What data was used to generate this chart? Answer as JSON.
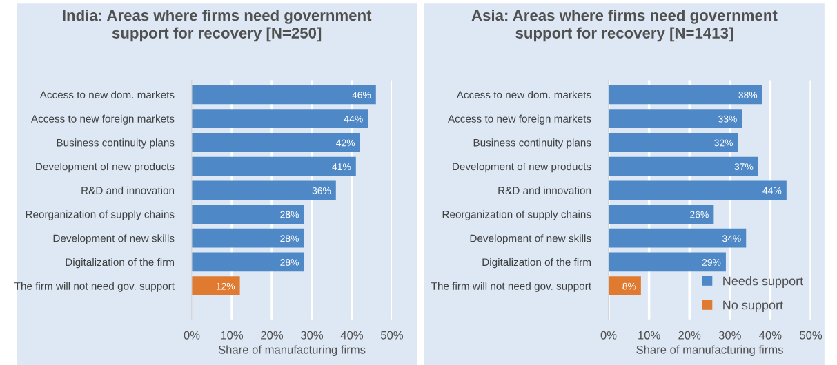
{
  "chart_data": [
    {
      "type": "bar",
      "orientation": "horizontal",
      "title": "India: Areas where firms need government\nsupport for recovery [N=250]",
      "xlabel": "Share of manufacturing firms",
      "categories": [
        "Access to new dom. markets",
        "Access to new foreign markets",
        "Business continuity plans",
        "Development of new products",
        "R&D and innovation",
        "Reorganization of supply chains",
        "Development of new skills",
        "Digitalization of the firm",
        "The firm will not need gov. support"
      ],
      "series": [
        {
          "color": "#4f88c6",
          "values": [
            46,
            44,
            42,
            41,
            36,
            28,
            28,
            28,
            null
          ],
          "value_labels": [
            "46%",
            "44%",
            "42%",
            "41%",
            "36%",
            "28%",
            "28%",
            "28%",
            null
          ]
        },
        {
          "color": "#e07a30",
          "values": [
            null,
            null,
            null,
            null,
            null,
            null,
            null,
            null,
            12
          ],
          "value_labels": [
            null,
            null,
            null,
            null,
            null,
            null,
            null,
            null,
            "12%"
          ]
        }
      ],
      "xlim": [
        0,
        50
      ],
      "xticks": [
        {
          "value": 0,
          "label": "0%"
        },
        {
          "value": 10,
          "label": "10%"
        },
        {
          "value": 20,
          "label": "20%"
        },
        {
          "value": 30,
          "label": "30%"
        },
        {
          "value": 40,
          "label": "40%"
        },
        {
          "value": 50,
          "label": "50%"
        }
      ],
      "grid": "x"
    },
    {
      "type": "bar",
      "orientation": "horizontal",
      "title": "Asia: Areas where firms need government\nsupport for recovery [N=1413]",
      "xlabel": "Share of manufacturing firms",
      "categories": [
        "Access to new dom. markets",
        "Access to new foreign markets",
        "Business continuity plans",
        "Development of new products",
        "R&D and innovation",
        "Reorganization of supply chains",
        "Development of new skills",
        "Digitalization of the firm",
        "The firm will not need gov. support"
      ],
      "series": [
        {
          "name": "Needs support",
          "color": "#4f88c6",
          "values": [
            38,
            33,
            32,
            37,
            44,
            26,
            34,
            29,
            null
          ],
          "value_labels": [
            "38%",
            "33%",
            "32%",
            "37%",
            "44%",
            "26%",
            "34%",
            "29%",
            null
          ]
        },
        {
          "name": "No support",
          "color": "#e07a30",
          "values": [
            null,
            null,
            null,
            null,
            null,
            null,
            null,
            null,
            8
          ],
          "value_labels": [
            null,
            null,
            null,
            null,
            null,
            null,
            null,
            null,
            "8%"
          ]
        }
      ],
      "xlim": [
        0,
        50
      ],
      "xticks": [
        {
          "value": 0,
          "label": "0%"
        },
        {
          "value": 10,
          "label": "10%"
        },
        {
          "value": 20,
          "label": "20%"
        },
        {
          "value": 30,
          "label": "30%"
        },
        {
          "value": 40,
          "label": "40%"
        },
        {
          "value": 50,
          "label": "50%"
        }
      ],
      "grid": "x",
      "legend": "bottom right"
    }
  ]
}
